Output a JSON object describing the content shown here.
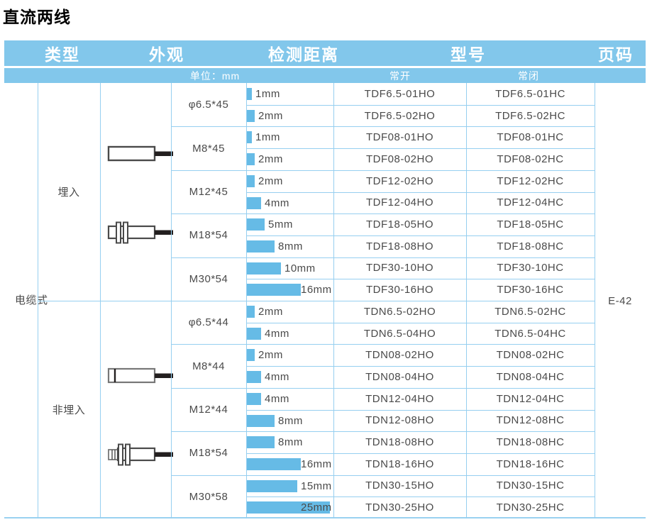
{
  "title": "直流两线",
  "page_code": "E-42",
  "category": "电缆式",
  "colors": {
    "header_blue": "#82C7EB",
    "grid_blue": "#96CFF0",
    "bar_blue": "#66BBE6",
    "body_text": "#4A4A4A"
  },
  "header": {
    "col_type": "类型",
    "col_appearance": "外观",
    "col_distance": "检测距离",
    "col_model": "型号",
    "col_page": "页码"
  },
  "subheader": {
    "unit": "单位：mm",
    "normally_open": "常开",
    "normally_closed": "常闭"
  },
  "sections": [
    {
      "mount": "埋入",
      "groups": [
        {
          "size": "φ6.5*45",
          "rows": [
            {
              "mm": 1,
              "distance_label": "1mm",
              "no": "TDF6.5-01HO",
              "nc": "TDF6.5-01HC"
            },
            {
              "mm": 2,
              "distance_label": "2mm",
              "no": "TDF6.5-02HO",
              "nc": "TDF6.5-02HC"
            }
          ]
        },
        {
          "size": "M8*45",
          "rows": [
            {
              "mm": 1,
              "distance_label": "1mm",
              "no": "TDF08-01HO",
              "nc": "TDF08-01HC"
            },
            {
              "mm": 2,
              "distance_label": "2mm",
              "no": "TDF08-02HO",
              "nc": "TDF08-02HC"
            }
          ]
        },
        {
          "size": "M12*45",
          "rows": [
            {
              "mm": 2,
              "distance_label": "2mm",
              "no": "TDF12-02HO",
              "nc": "TDF12-02HC"
            },
            {
              "mm": 4,
              "distance_label": "4mm",
              "no": "TDF12-04HO",
              "nc": "TDF12-04HC"
            }
          ]
        },
        {
          "size": "M18*54",
          "rows": [
            {
              "mm": 5,
              "distance_label": "5mm",
              "no": "TDF18-05HO",
              "nc": "TDF18-05HC"
            },
            {
              "mm": 8,
              "distance_label": "8mm",
              "no": "TDF18-08HO",
              "nc": "TDF18-08HC"
            }
          ]
        },
        {
          "size": "M30*54",
          "rows": [
            {
              "mm": 10,
              "distance_label": "10mm",
              "no": "TDF30-10HO",
              "nc": "TDF30-10HC"
            },
            {
              "mm": 16,
              "distance_label": "16mm",
              "no": "TDF30-16HO",
              "nc": "TDF30-16HC"
            }
          ]
        }
      ]
    },
    {
      "mount": "非埋入",
      "groups": [
        {
          "size": "φ6.5*44",
          "rows": [
            {
              "mm": 2,
              "distance_label": "2mm",
              "no": "TDN6.5-02HO",
              "nc": "TDN6.5-02HC"
            },
            {
              "mm": 4,
              "distance_label": "4mm",
              "no": "TDN6.5-04HO",
              "nc": "TDN6.5-04HC"
            }
          ]
        },
        {
          "size": "M8*44",
          "rows": [
            {
              "mm": 2,
              "distance_label": "2mm",
              "no": "TDN08-02HO",
              "nc": "TDN08-02HC"
            },
            {
              "mm": 4,
              "distance_label": "4mm",
              "no": "TDN08-04HO",
              "nc": "TDN08-04HC"
            }
          ]
        },
        {
          "size": "M12*44",
          "rows": [
            {
              "mm": 4,
              "distance_label": "4mm",
              "no": "TDN12-04HO",
              "nc": "TDN12-04HC"
            },
            {
              "mm": 8,
              "distance_label": "8mm",
              "no": "TDN12-08HO",
              "nc": "TDN12-08HC"
            }
          ]
        },
        {
          "size": "M18*54",
          "rows": [
            {
              "mm": 8,
              "distance_label": "8mm",
              "no": "TDN18-08HO",
              "nc": "TDN18-08HC"
            },
            {
              "mm": 16,
              "distance_label": "16mm",
              "no": "TDN18-16HO",
              "nc": "TDN18-16HC"
            }
          ]
        },
        {
          "size": "M30*58",
          "rows": [
            {
              "mm": 15,
              "distance_label": "15mm",
              "no": "TDN30-15HO",
              "nc": "TDN30-15HC"
            },
            {
              "mm": 25,
              "distance_label": "25mm",
              "no": "TDN30-25HO",
              "nc": "TDN30-25HC"
            }
          ]
        }
      ]
    }
  ]
}
